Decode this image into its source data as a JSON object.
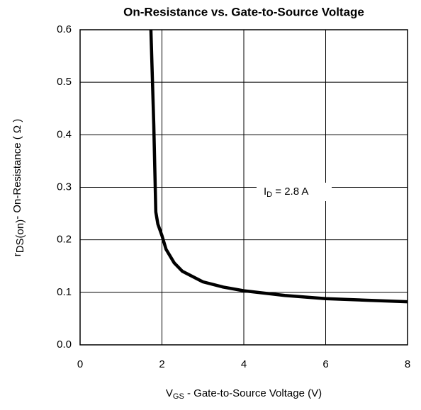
{
  "chart_data": {
    "type": "line",
    "title": "On-Resistance vs. Gate-to-Source Voltage",
    "x_label": {
      "main": "V",
      "sub": "GS",
      "rest": " - Gate-to-Source Voltage (V)"
    },
    "y_label": {
      "main": "r",
      "sub": "DS(on)",
      "rest": "-  On-Resistance ( Ω )"
    },
    "annotation": {
      "main": "I",
      "sub": "D",
      "rest": " = 2.8 A"
    },
    "x": [
      1.73,
      1.8,
      1.85,
      1.9,
      2.0,
      2.1,
      2.3,
      2.5,
      3.0,
      3.5,
      4.0,
      5.0,
      6.0,
      7.0,
      8.0
    ],
    "series": [
      {
        "name": "ID = 2.8 A",
        "color": "#000000",
        "values": [
          0.6,
          0.42,
          0.253,
          0.23,
          0.208,
          0.182,
          0.156,
          0.14,
          0.12,
          0.11,
          0.103,
          0.094,
          0.088,
          0.085,
          0.082
        ]
      }
    ],
    "xlim": [
      0,
      8
    ],
    "ylim": [
      0,
      0.6
    ],
    "xticks": [
      0,
      2,
      4,
      6,
      8
    ],
    "yticks": [
      {
        "value": 0,
        "label": "0.0"
      },
      {
        "value": 0.1,
        "label": "0.1"
      },
      {
        "value": 0.2,
        "label": "0.2"
      },
      {
        "value": 0.3,
        "label": "0.3"
      },
      {
        "value": 0.4,
        "label": "0.4"
      },
      {
        "value": 0.5,
        "label": "0.5"
      },
      {
        "value": 0.6,
        "label": "0.6"
      }
    ],
    "grid": true
  }
}
